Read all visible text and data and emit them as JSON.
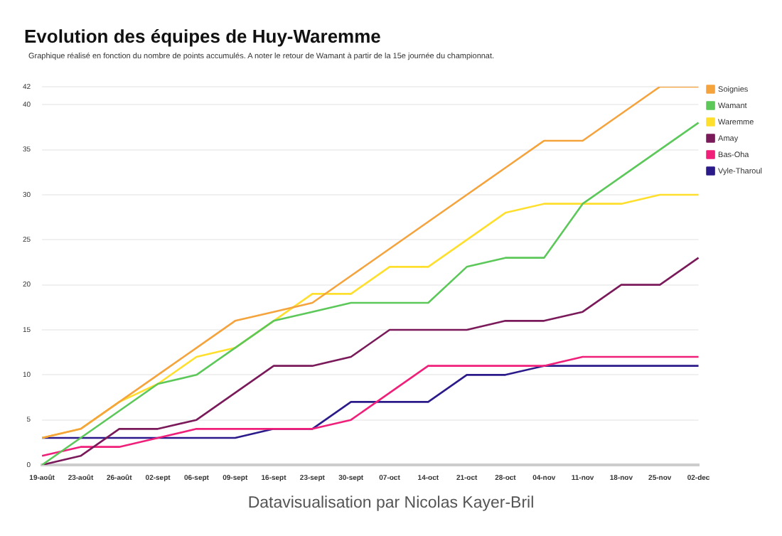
{
  "chart_data": {
    "type": "line",
    "title": "Evolution des équipes de Huy-Waremme",
    "subtitle": "Graphique réalisé en fonction du nombre de points accumulés. A noter le retour de Wamant à partir de la 15e journée du championnat.",
    "annotations": [
      "Datavisualisation par Nicolas Kayer-Bril"
    ],
    "categories": [
      "19-août",
      "23-août",
      "26-août",
      "02-sept",
      "06-sept",
      "09-sept",
      "16-sept",
      "23-sept",
      "30-sept",
      "07-oct",
      "14-oct",
      "21-oct",
      "28-oct",
      "04-nov",
      "11-nov",
      "18-nov",
      "25-nov",
      "02-dec"
    ],
    "series": [
      {
        "name": "Soignies",
        "color": "#f5a33c",
        "values": [
          3,
          4,
          7,
          10,
          13,
          16,
          17,
          18,
          21,
          24,
          27,
          30,
          33,
          36,
          36,
          39,
          42,
          42
        ]
      },
      {
        "name": "Wamant",
        "color": "#5cc85a",
        "values": [
          0,
          3,
          6,
          9,
          10,
          13,
          16,
          17,
          18,
          18,
          18,
          22,
          23,
          23,
          29,
          32,
          35,
          38
        ]
      },
      {
        "name": "Waremme",
        "color": "#ffdf2e",
        "values": [
          3,
          4,
          7,
          9,
          12,
          13,
          16,
          19,
          19,
          22,
          22,
          25,
          28,
          29,
          29,
          29,
          30,
          30
        ]
      },
      {
        "name": "Amay",
        "color": "#7a1a5a",
        "values": [
          0,
          1,
          4,
          4,
          5,
          8,
          11,
          11,
          12,
          15,
          15,
          15,
          16,
          16,
          17,
          20,
          20,
          23
        ]
      },
      {
        "name": "Bas-Oha",
        "color": "#f0207a",
        "values": [
          1,
          2,
          2,
          3,
          4,
          4,
          4,
          4,
          5,
          8,
          11,
          11,
          11,
          11,
          12,
          12,
          12,
          12
        ]
      },
      {
        "name": "Vyle-Tharoul",
        "color": "#2a1a8a",
        "values": [
          3,
          3,
          3,
          3,
          3,
          3,
          4,
          4,
          7,
          7,
          7,
          10,
          10,
          11,
          11,
          11,
          11,
          11
        ]
      }
    ],
    "ylim": [
      0,
      42
    ],
    "yticks": [
      0,
      5,
      10,
      15,
      20,
      25,
      30,
      35,
      40,
      42
    ],
    "grid": "y",
    "legend": "top right",
    "marker": "none",
    "line_style": "solid"
  }
}
